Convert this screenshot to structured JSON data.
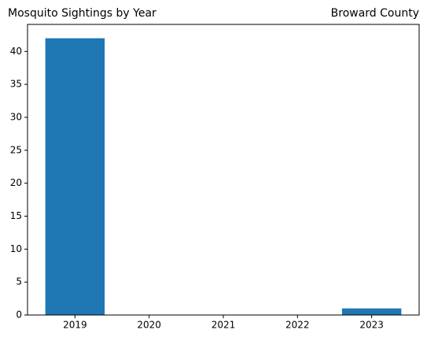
{
  "chart_data": {
    "type": "bar",
    "title": "Mosquito Sightings by Year",
    "subtitle": "Broward County",
    "x": [
      2019,
      2020,
      2021,
      2022,
      2023
    ],
    "values": [
      42,
      0,
      0,
      0,
      1
    ],
    "color": "#1f77b4",
    "xlim": [
      2018.36,
      2023.64
    ],
    "xticks": [
      2019,
      2020,
      2021,
      2022,
      2023
    ],
    "ylim": [
      0,
      44.1
    ],
    "yticks": [
      0,
      5,
      10,
      15,
      20,
      25,
      30,
      35,
      40
    ],
    "grid": false
  }
}
